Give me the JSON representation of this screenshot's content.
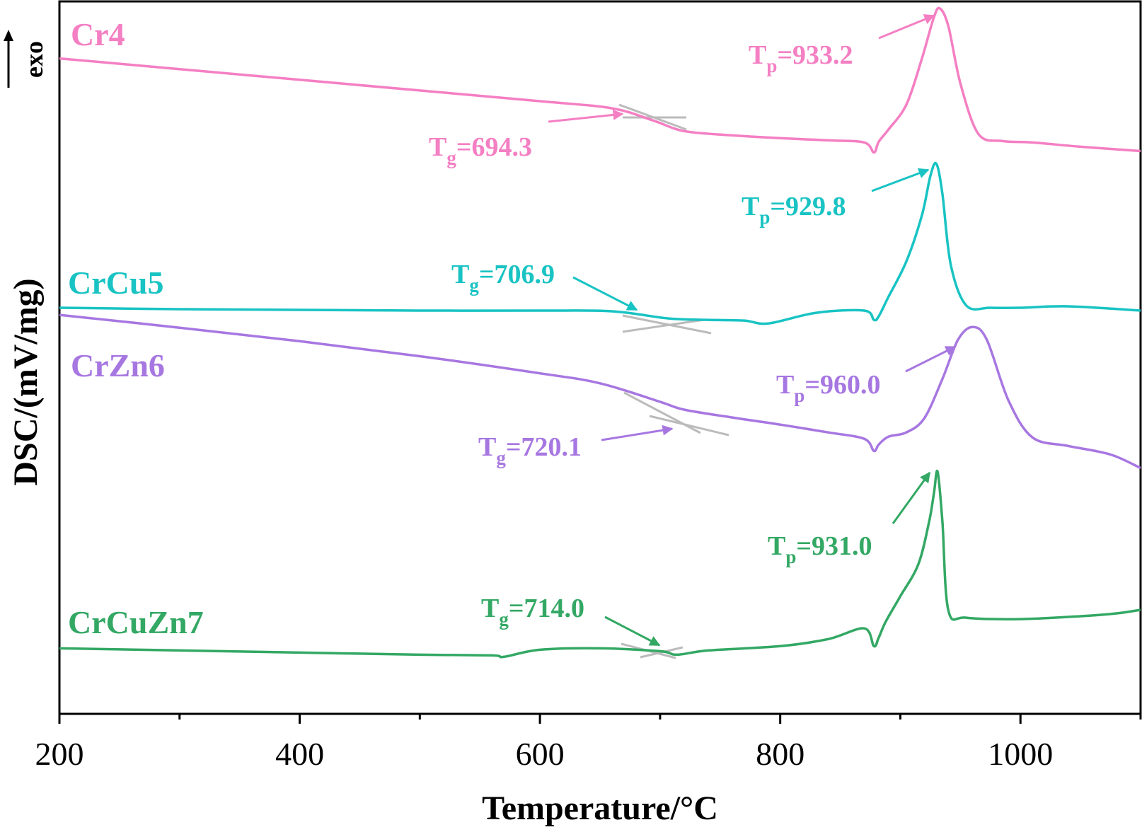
{
  "chart_data": {
    "type": "line",
    "title": "",
    "xlabel": "Temperature/°C",
    "ylabel": "DSC/(mV/mg)",
    "exo_label": "exo",
    "xlim": [
      200,
      1100
    ],
    "ylim": [
      0,
      100
    ],
    "x_ticks": [
      200,
      400,
      600,
      800,
      1000
    ],
    "x_tick_labels": [
      "200",
      "400",
      "600",
      "800",
      "1000"
    ],
    "x_minor_ticks": [
      300,
      500,
      700,
      900,
      1100
    ],
    "y_ticks_shown": false,
    "grid": false,
    "legend": "none",
    "series": [
      {
        "name": "Cr4",
        "color": "#f47fc3",
        "x": [
          200,
          300,
          400,
          500,
          600,
          660,
          694,
          720,
          760,
          800,
          840,
          870,
          878,
          882,
          890,
          905,
          918,
          928,
          933,
          940,
          950,
          965,
          985,
          1010,
          1050,
          1100
        ],
        "y": [
          92,
          90.5,
          89,
          87.5,
          86,
          85,
          83.3,
          81.8,
          81.2,
          80.8,
          80.5,
          80.2,
          78.8,
          80.3,
          82,
          85.5,
          92,
          97.8,
          99,
          96.5,
          88.5,
          81.4,
          80.4,
          80.2,
          79.6,
          79
        ]
      },
      {
        "name": "CrCu5",
        "color": "#19c3c3",
        "x": [
          200,
          300,
          400,
          500,
          600,
          660,
          707,
          740,
          770,
          790,
          830,
          870,
          878,
          882,
          890,
          905,
          918,
          925,
          930,
          935,
          942,
          955,
          975,
          1000,
          1040,
          1100
        ],
        "y": [
          57,
          56.8,
          56.7,
          56.6,
          56.6,
          56.5,
          55.5,
          55.3,
          55.2,
          54.8,
          56.3,
          56.6,
          55.3,
          55.8,
          58.5,
          63.5,
          70,
          75.5,
          77.2,
          73,
          63,
          57.3,
          57,
          57,
          57.2,
          56.6
        ]
      },
      {
        "name": "CrZn6",
        "color": "#a777e1",
        "x": [
          200,
          300,
          400,
          500,
          600,
          650,
          700,
          720,
          760,
          800,
          840,
          870,
          878,
          882,
          890,
          905,
          920,
          935,
          948,
          960,
          972,
          990,
          1010,
          1040,
          1075,
          1100
        ],
        "y": [
          56,
          54.2,
          52.3,
          50.2,
          47.8,
          46.4,
          43.8,
          42.7,
          41.6,
          40.6,
          39.5,
          38.6,
          36.9,
          37.8,
          38.9,
          39.5,
          41.5,
          47,
          52.5,
          54.3,
          52.5,
          44,
          38.8,
          37.6,
          36.4,
          34.5
        ]
      },
      {
        "name": "CrCuZn7",
        "color": "#33a864",
        "x": [
          200,
          300,
          400,
          500,
          560,
          570,
          600,
          650,
          700,
          714,
          740,
          800,
          840,
          870,
          878,
          882,
          888,
          900,
          915,
          924,
          928,
          931,
          935,
          940,
          955,
          1000,
          1050,
          1080,
          1100
        ],
        "y": [
          9.2,
          8.9,
          8.6,
          8.3,
          8.2,
          8,
          9,
          9.2,
          8.8,
          8.3,
          8.9,
          9.5,
          10.5,
          12,
          9.5,
          10.7,
          13,
          16.5,
          21,
          27,
          31,
          34,
          27,
          14.5,
          13.5,
          13.3,
          13.7,
          14.1,
          14.6
        ]
      }
    ],
    "annotations": [
      {
        "series": "Cr4",
        "symbol": "T",
        "sub": "g",
        "text": "=694.3",
        "x": 694.3
      },
      {
        "series": "Cr4",
        "symbol": "T",
        "sub": "p",
        "text": "=933.2",
        "x": 933.2
      },
      {
        "series": "CrCu5",
        "symbol": "T",
        "sub": "g",
        "text": "=706.9",
        "x": 706.9
      },
      {
        "series": "CrCu5",
        "symbol": "T",
        "sub": "p",
        "text": "=929.8",
        "x": 929.8
      },
      {
        "series": "CrZn6",
        "symbol": "T",
        "sub": "g",
        "text": "=720.1",
        "x": 720.1
      },
      {
        "series": "CrZn6",
        "symbol": "T",
        "sub": "p",
        "text": "=960.0",
        "x": 960.0
      },
      {
        "series": "CrCuZn7",
        "symbol": "T",
        "sub": "g",
        "text": "=714.0",
        "x": 714.0
      },
      {
        "series": "CrCuZn7",
        "symbol": "T",
        "sub": "p",
        "text": "=931.0",
        "x": 931.0
      }
    ],
    "tangent_color": "#bbbbbb"
  }
}
